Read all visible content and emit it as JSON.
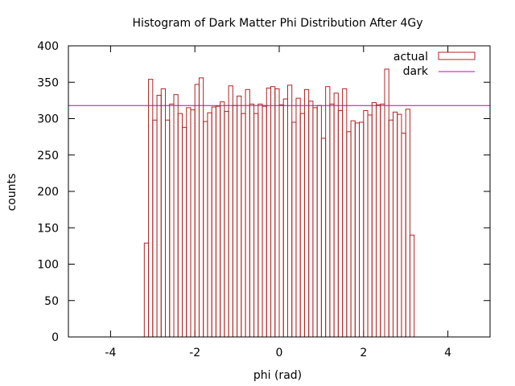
{
  "chart_data": {
    "type": "bar",
    "title": "Histogram of Dark Matter Phi Distribution After 4Gy",
    "xlabel": "phi (rad)",
    "ylabel": "counts",
    "xlim": [
      -5,
      5
    ],
    "ylim": [
      0,
      400
    ],
    "xticks": [
      -4,
      -2,
      0,
      2,
      4
    ],
    "yticks": [
      0,
      50,
      100,
      150,
      200,
      250,
      300,
      350,
      400
    ],
    "xtick_labels": [
      "-4",
      "-2",
      "0",
      "2",
      "4"
    ],
    "ytick_labels": [
      "0",
      "50",
      "100",
      "150",
      "200",
      "250",
      "300",
      "350",
      "400"
    ],
    "legend_position": "top-right",
    "colors": {
      "actual": "#b22222",
      "dark": "#c000c0",
      "axes": "#000000"
    },
    "series": [
      {
        "name": "actual",
        "style": "histogram-steps",
        "bin_start": -3.2,
        "bin_width": 0.1,
        "values": [
          129,
          354,
          298,
          332,
          341,
          298,
          320,
          333,
          307,
          288,
          315,
          312,
          347,
          356,
          296,
          308,
          316,
          317,
          323,
          310,
          345,
          318,
          331,
          307,
          340,
          320,
          307,
          320,
          317,
          342,
          344,
          341,
          319,
          327,
          346,
          295,
          328,
          307,
          340,
          324,
          315,
          318,
          273,
          344,
          320,
          335,
          311,
          341,
          282,
          297,
          294,
          295,
          311,
          305,
          322,
          319,
          320,
          368,
          298,
          309,
          306,
          280,
          313,
          140
        ]
      },
      {
        "name": "dark",
        "style": "horizontal-line",
        "value": 318
      }
    ]
  },
  "legend": {
    "actual_label": "actual",
    "dark_label": "dark"
  }
}
